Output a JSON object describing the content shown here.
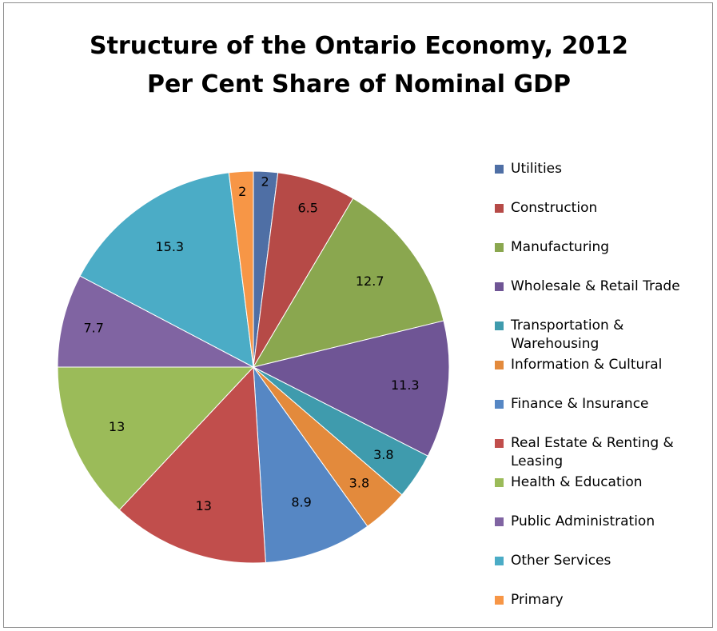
{
  "chart_data": {
    "type": "pie",
    "title": "Structure of the Ontario Economy, 2012",
    "subtitle": "Per Cent Share of Nominal GDP",
    "legend_position": "right",
    "categories": [
      "Utilities",
      "Construction",
      "Manufacturing",
      "Wholesale & Retail Trade",
      "Transportation & Warehousing",
      "Information & Cultural",
      "Finance & Insurance",
      "Real Estate & Renting & Leasing",
      "Health & Education",
      "Public Administration",
      "Other Services",
      "Primary"
    ],
    "values": [
      2,
      6.5,
      12.7,
      11.3,
      3.8,
      3.8,
      8.9,
      13,
      13,
      7.7,
      15.3,
      2
    ],
    "data_labels": [
      "2",
      "6.5",
      "12.7",
      "11.3",
      "3.8",
      "3.8",
      "8.9",
      "13",
      "13",
      "7.7",
      "15.3",
      "2"
    ],
    "colors": [
      "#4f6fa5",
      "#b64a47",
      "#8aa74f",
      "#6f5595",
      "#3f9bad",
      "#e38a3c",
      "#5687c4",
      "#c14e4c",
      "#9bbb59",
      "#8064a2",
      "#4bacc6",
      "#f79646"
    ]
  }
}
